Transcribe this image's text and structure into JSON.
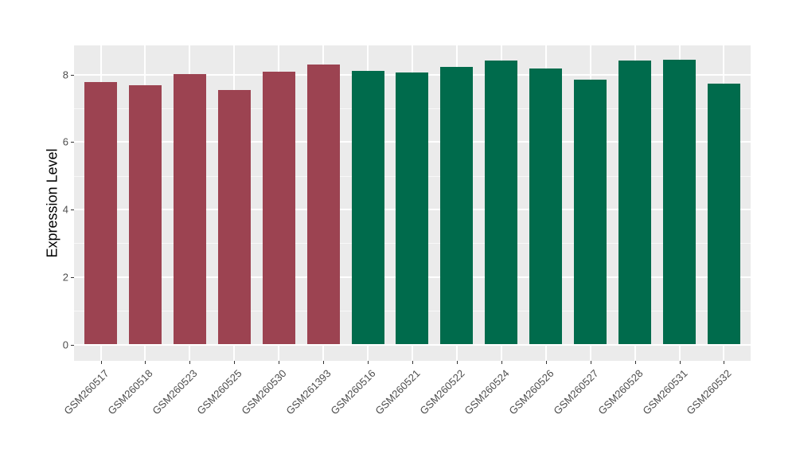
{
  "figure": {
    "background": "#FFFFFF"
  },
  "chart_data": {
    "type": "bar",
    "title": "",
    "xlabel": "",
    "ylabel": "Expression Level",
    "categories": [
      "GSM260517",
      "GSM260518",
      "GSM260523",
      "GSM260525",
      "GSM260530",
      "GSM261393",
      "GSM260516",
      "GSM260521",
      "GSM260522",
      "GSM260524",
      "GSM260526",
      "GSM260527",
      "GSM260528",
      "GSM260531",
      "GSM260532"
    ],
    "values": [
      7.78,
      7.69,
      8.01,
      7.55,
      8.08,
      8.29,
      8.11,
      8.06,
      8.24,
      8.41,
      8.18,
      7.84,
      8.41,
      8.45,
      7.74
    ],
    "bar_colors": [
      "#9C4351",
      "#9C4351",
      "#9C4351",
      "#9C4351",
      "#9C4351",
      "#9C4351",
      "#006B4C",
      "#006B4C",
      "#006B4C",
      "#006B4C",
      "#006B4C",
      "#006B4C",
      "#006B4C",
      "#006B4C",
      "#006B4C"
    ],
    "groups": [
      {
        "color": "#9C4351",
        "categories": [
          "GSM260517",
          "GSM260518",
          "GSM260523",
          "GSM260525",
          "GSM260530",
          "GSM261393"
        ]
      },
      {
        "color": "#006B4C",
        "categories": [
          "GSM260516",
          "GSM260521",
          "GSM260522",
          "GSM260524",
          "GSM260526",
          "GSM260527",
          "GSM260528",
          "GSM260531",
          "GSM260532"
        ]
      }
    ],
    "ylim": [
      0,
      8.86
    ],
    "yticks": [
      0,
      2,
      4,
      6,
      8
    ],
    "minor_yticks": [
      1,
      3,
      5,
      7
    ],
    "grid": "on",
    "legend": "none",
    "panel_background": "#EBEBEB",
    "gridline_color": "#FFFFFF",
    "axis_text_color": "#4D4D4D",
    "axis_title_color": "#000000"
  }
}
